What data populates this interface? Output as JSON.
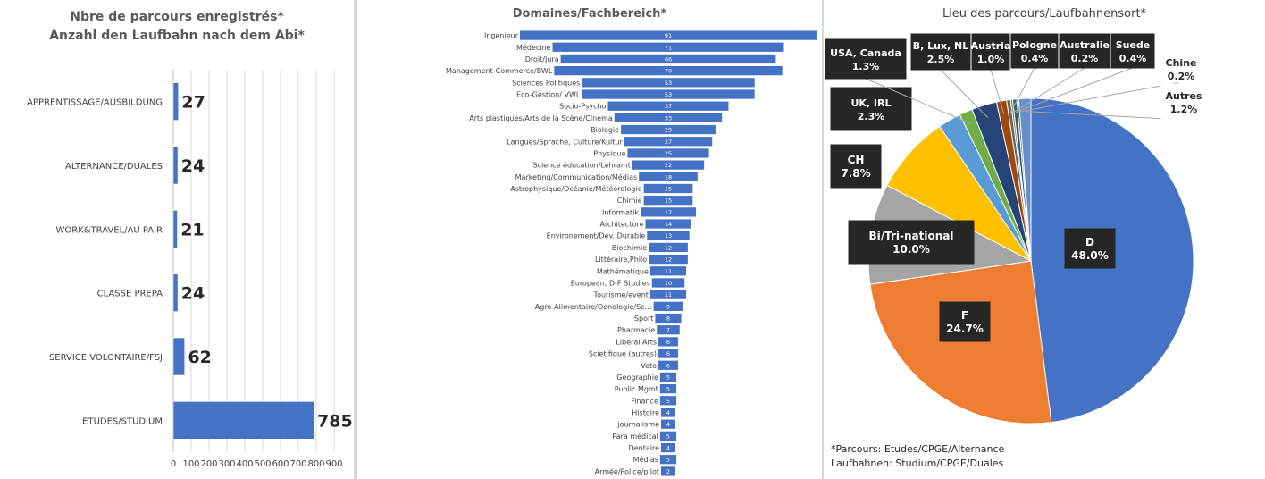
{
  "chart_data": [
    {
      "type": "bar",
      "orientation": "horizontal",
      "title": "Nbre de parcours enregistrés*",
      "subtitle": "Anzahl den Laufbahn nach dem Abi*",
      "categories": [
        "APPRENTISSAGE/AUSBILDUNG",
        "ALTERNANCE/DUALES",
        "WORK&TRAVEL/AU PAIR",
        "CLASSE PREPA",
        "SERVICE VOLONTAIRE/FSJ",
        "ETUDES/STUDIUM"
      ],
      "values": [
        27,
        24,
        21,
        24,
        62,
        785
      ],
      "xticks": [
        "0",
        "100",
        "200",
        "300",
        "400",
        "500",
        "600",
        "700",
        "800",
        "900"
      ],
      "xlim": [
        0,
        900
      ],
      "grid": true,
      "bar_color": "#4472c4"
    },
    {
      "type": "bar",
      "orientation": "horizontal-centered",
      "title": "Domaines/Fachbereich*",
      "categories": [
        "Ingenieur",
        "Médecine",
        "Droit/Jura",
        "Management-Commerce/BWL",
        "Sciences Politiques",
        "Eco-Gestion/ VWL",
        "Socio-Psycho",
        "Arts plastiques/Arts de la Scène/Cinema",
        "Biologie",
        "Langues/Sprache, Culture/Kultur",
        "Physique",
        "Science éducation/Lehramt",
        "Marketing/Communication/Médias",
        "Astrophysique/Océanie/Météorologie",
        "Chimie",
        "Informatik",
        "Architecture",
        "Environement/Dev. Durable",
        "Biochimie",
        "Littéraire,Philo",
        "Mathématique",
        "European, D-F Studies",
        "Tourisme/event",
        "Agro-Alimentaire/Oenologie/Sc…",
        "Sport",
        "Pharmacie",
        "Liberal Arts",
        "Scietifique (autres)",
        "Veto",
        "Geographie",
        "Public Mgmt",
        "Finance",
        "Histoire",
        "journalisme",
        "Para médical",
        "Dentaire",
        "Médias",
        "Armée/Police/pilot"
      ],
      "values": [
        91,
        71,
        66,
        70,
        53,
        53,
        37,
        33,
        29,
        27,
        25,
        22,
        18,
        15,
        15,
        17,
        14,
        13,
        12,
        12,
        11,
        10,
        11,
        9,
        8,
        7,
        6,
        6,
        6,
        5,
        5,
        5,
        4,
        4,
        5,
        4,
        5,
        2
      ],
      "bar_color": "#4472c4"
    },
    {
      "type": "pie",
      "title": "Lieu des parcours/Laufbahnensort*",
      "slices": [
        {
          "label": "D",
          "value": 48.0,
          "text": "48.0%",
          "color": "#4472c4"
        },
        {
          "label": "F",
          "value": 24.7,
          "text": "24.7%",
          "color": "#ed7d31"
        },
        {
          "label": "Bi/Tri-national",
          "value": 10.0,
          "text": "10.0%",
          "color": "#a5a5a5"
        },
        {
          "label": "CH",
          "value": 7.8,
          "text": "7.8%",
          "color": "#ffc000"
        },
        {
          "label": "UK, IRL",
          "value": 2.3,
          "text": "2.3%",
          "color": "#5b9bd5"
        },
        {
          "label": "USA, Canada",
          "value": 1.3,
          "text": "1.3%",
          "color": "#70ad47"
        },
        {
          "label": "B, Lux, NL",
          "value": 2.5,
          "text": "2.5%",
          "color": "#264478"
        },
        {
          "label": "Austria",
          "value": 1.0,
          "text": "1.0%",
          "color": "#9e480e"
        },
        {
          "label": "Pologne",
          "value": 0.4,
          "text": "0.4%",
          "color": "#636363"
        },
        {
          "label": "Australie",
          "value": 0.2,
          "text": "0.2%",
          "color": "#997300"
        },
        {
          "label": "Suede",
          "value": 0.4,
          "text": "0.4%",
          "color": "#255e91"
        },
        {
          "label": "Chine",
          "value": 0.2,
          "text": "0.2%",
          "color": "#43682b"
        },
        {
          "label": "Autres",
          "value": 1.2,
          "text": "1.2%",
          "color": "#698ed0"
        }
      ]
    }
  ],
  "footnote": {
    "line1": "*Parcours: Etudes/CPGE/Alternance",
    "line2": "Laufbahnen: Studium/CPGE/Duales"
  }
}
